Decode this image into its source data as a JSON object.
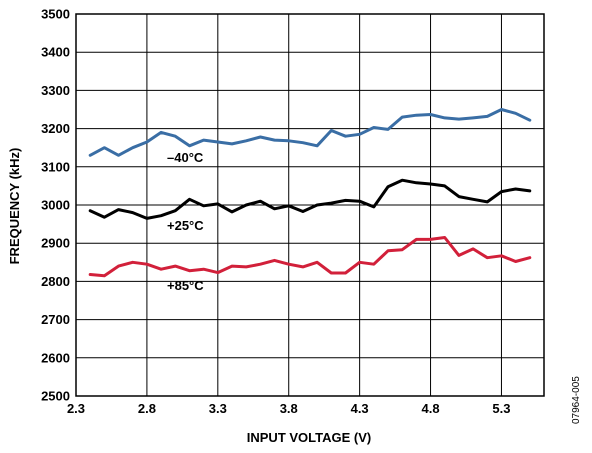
{
  "chart_data": {
    "type": "line",
    "title": "",
    "xlabel": "INPUT VOLTAGE (V)",
    "ylabel": "FREQUENCY (kHz)",
    "xlim": [
      2.3,
      5.6
    ],
    "ylim": [
      2500,
      3500
    ],
    "x_ticks": [
      "2.3",
      "2.8",
      "3.3",
      "3.8",
      "4.3",
      "4.8",
      "5.3"
    ],
    "y_ticks": [
      "2500",
      "2600",
      "2700",
      "2800",
      "2900",
      "3000",
      "3100",
      "3200",
      "3300",
      "3400",
      "3500"
    ],
    "grid": true,
    "figure_id": "07964-005",
    "x": [
      2.4,
      2.5,
      2.6,
      2.7,
      2.8,
      2.9,
      3.0,
      3.1,
      3.2,
      3.3,
      3.4,
      3.5,
      3.6,
      3.7,
      3.8,
      3.9,
      4.0,
      4.1,
      4.2,
      4.3,
      4.4,
      4.5,
      4.6,
      4.7,
      4.8,
      4.9,
      5.0,
      5.1,
      5.2,
      5.3,
      5.4,
      5.5
    ],
    "series": [
      {
        "name": "–40°C",
        "color": "#3a6ea5",
        "values": [
          3130,
          3150,
          3130,
          3150,
          3165,
          3190,
          3180,
          3155,
          3170,
          3165,
          3160,
          3168,
          3178,
          3170,
          3168,
          3163,
          3155,
          3195,
          3180,
          3185,
          3203,
          3198,
          3230,
          3235,
          3237,
          3228,
          3225,
          3228,
          3232,
          3250,
          3240,
          3222
        ]
      },
      {
        "name": "+25°C",
        "color": "#000000",
        "values": [
          2985,
          2968,
          2988,
          2980,
          2965,
          2972,
          2985,
          3015,
          2998,
          3003,
          2982,
          3000,
          3010,
          2990,
          2998,
          2983,
          3000,
          3005,
          3012,
          3010,
          2995,
          3048,
          3065,
          3058,
          3055,
          3050,
          3022,
          3015,
          3008,
          3035,
          3042,
          3037
        ]
      },
      {
        "name": "+85°C",
        "color": "#d2203a",
        "values": [
          2818,
          2815,
          2840,
          2850,
          2845,
          2832,
          2840,
          2828,
          2832,
          2823,
          2840,
          2838,
          2845,
          2855,
          2845,
          2838,
          2850,
          2822,
          2822,
          2850,
          2845,
          2880,
          2883,
          2910,
          2910,
          2915,
          2868,
          2885,
          2862,
          2867,
          2852,
          2862
        ]
      }
    ]
  }
}
